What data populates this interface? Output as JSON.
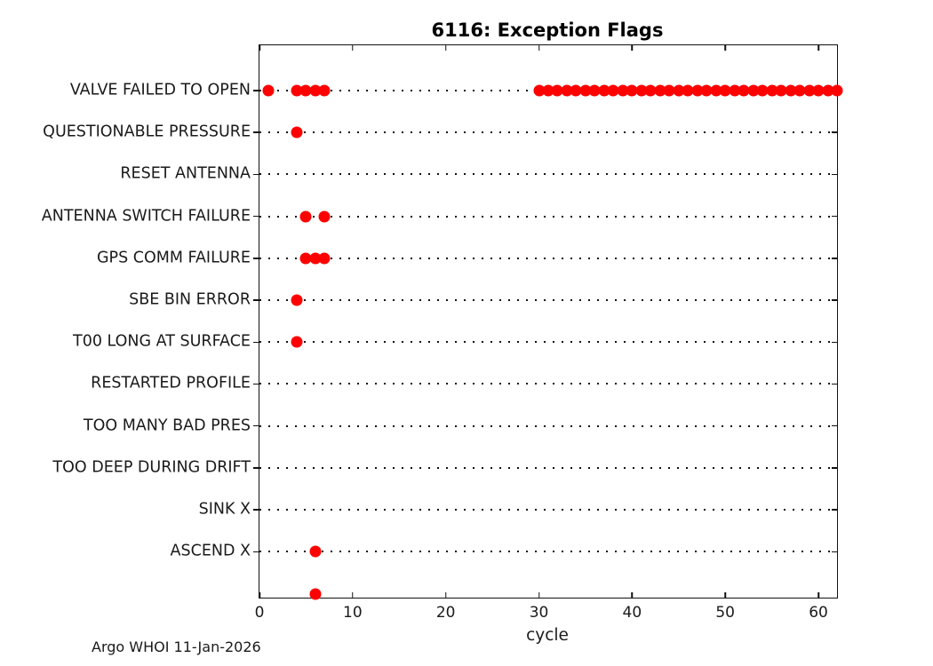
{
  "figure": {
    "title": "6116: Exception Flags",
    "footer_credit": "Argo WHOI 11-Jan-2026"
  },
  "chart_data": {
    "type": "scatter",
    "title": "6116: Exception Flags",
    "xlabel": "cycle",
    "ylabel": "",
    "xlim": [
      0,
      62
    ],
    "xticks": [
      0,
      10,
      20,
      30,
      40,
      50,
      60
    ],
    "grid": "horizontal dotted black line per category",
    "legend_position": "none",
    "marker_shape": "filled-circle",
    "marker_color": "#ff0000",
    "axis_color": "#111111",
    "rows": [
      {
        "label": "VALVE FAILED TO OPEN",
        "cycles": [
          1,
          4,
          5,
          6,
          7,
          30,
          31,
          32,
          33,
          34,
          35,
          36,
          37,
          38,
          39,
          40,
          41,
          42,
          43,
          44,
          45,
          46,
          47,
          48,
          49,
          50,
          51,
          52,
          53,
          54,
          55,
          56,
          57,
          58,
          59,
          60,
          61,
          62
        ]
      },
      {
        "label": "QUESTIONABLE PRESSURE",
        "cycles": [
          4
        ]
      },
      {
        "label": "RESET ANTENNA",
        "cycles": []
      },
      {
        "label": "ANTENNA SWITCH FAILURE",
        "cycles": [
          5,
          7
        ]
      },
      {
        "label": "GPS COMM FAILURE",
        "cycles": [
          5,
          6,
          7
        ]
      },
      {
        "label": "SBE BIN ERROR",
        "cycles": [
          4
        ]
      },
      {
        "label": "T00 LONG AT SURFACE",
        "cycles": [
          4
        ]
      },
      {
        "label": "RESTARTED PROFILE",
        "cycles": []
      },
      {
        "label": "TOO MANY BAD PRES",
        "cycles": []
      },
      {
        "label": "TOO DEEP DURING DRIFT",
        "cycles": []
      },
      {
        "label": "SINK X",
        "cycles": []
      },
      {
        "label": "ASCEND X",
        "cycles": [
          6
        ]
      },
      {
        "label": "",
        "cycles": [
          6
        ],
        "on_axis": true
      }
    ]
  }
}
